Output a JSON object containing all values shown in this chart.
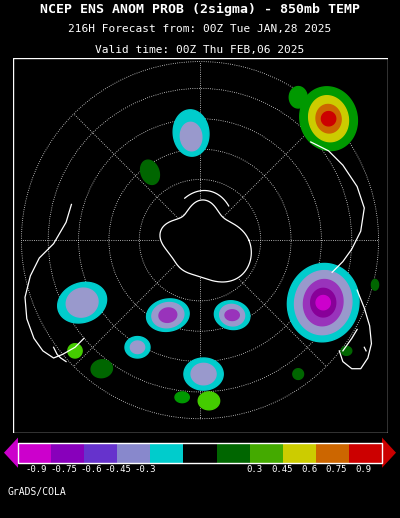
{
  "title_line1": "NCEP ENS ANOM PROB (2sigma) - 850mb TEMP",
  "title_line2": "216H Forecast from: 00Z Tue JAN,28 2025",
  "title_line3": "Valid time: 00Z Thu FEB,06 2025",
  "background_color": "#000000",
  "title_color": "#ffffff",
  "text_color": "#ffffff",
  "credit_text": "GrADS/COLA",
  "credit_fontsize": 7,
  "title_fontsize": 9.5,
  "subtitle_fontsize": 8,
  "cb_colors": [
    "#cc00cc",
    "#8800bb",
    "#6633cc",
    "#8888cc",
    "#00cccc",
    "#000000",
    "#006600",
    "#44aa00",
    "#cccc00",
    "#cc6600",
    "#cc0000"
  ],
  "cb_tick_labels": [
    "-0.9",
    "-0.75",
    "-0.6",
    "-0.45",
    "-0.3",
    "0.3",
    "0.45",
    "0.6",
    "0.75",
    "0.9"
  ],
  "cb_tick_vals": [
    -0.9,
    -0.75,
    -0.6,
    -0.45,
    -0.3,
    0.3,
    0.45,
    0.6,
    0.75,
    0.9
  ]
}
